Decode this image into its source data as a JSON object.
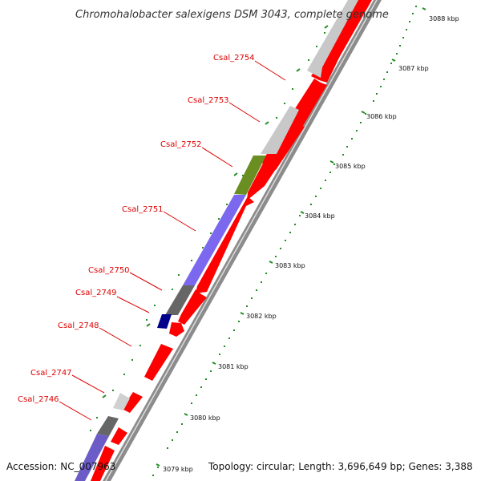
{
  "title": "Chromohalobacter salexigens DSM 3043, complete genome",
  "accession": "Accession: NC_007963",
  "topology": "Topology: circular; Length: 3,696,649 bp; Genes: 3,388",
  "colors": {
    "forward_strand": "#ff0000",
    "reverse_grey": "#c8c8c8",
    "reverse_dark": "#666666",
    "reverse_olive": "#6b8e23",
    "reverse_blue": "#7b68ee",
    "reverse_navy": "#00008b",
    "label": "#dd0000",
    "tick": "#228b22"
  },
  "gene_labels": [
    "Csal_2754",
    "Csal_2753",
    "Csal_2752",
    "Csal_2751",
    "Csal_2750",
    "Csal_2749",
    "Csal_2748",
    "Csal_2747",
    "Csal_2746"
  ],
  "tick_labels": [
    "3088 kbp",
    "3087 kbp",
    "3086 kbp",
    "3085 kbp",
    "3084 kbp",
    "3083 kbp",
    "3082 kbp",
    "3081 kbp",
    "3080 kbp",
    "3079 kbp"
  ]
}
